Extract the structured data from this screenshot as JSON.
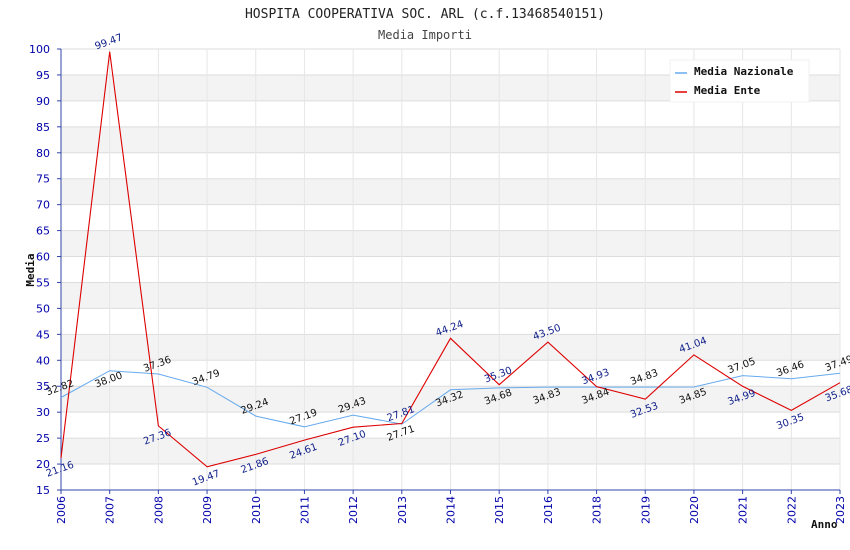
{
  "chart_data": {
    "type": "line",
    "title": "HOSPITA COOPERATIVA SOC. ARL (c.f.13468540151)",
    "subtitle": "Media Importi",
    "xlabel": "Anno",
    "ylabel": "Media",
    "ylim": [
      15,
      100
    ],
    "ytick_step": 5,
    "categories": [
      "2006",
      "2007",
      "2008",
      "2009",
      "2010",
      "2011",
      "2012",
      "2013",
      "2014",
      "2015",
      "2016",
      "2018",
      "2019",
      "2020",
      "2021",
      "2022",
      "2023"
    ],
    "series": [
      {
        "name": "Media Nazionale",
        "color": "#66aaee",
        "values": [
          32.82,
          38.0,
          37.36,
          34.79,
          29.24,
          27.19,
          29.43,
          27.71,
          34.32,
          34.68,
          34.83,
          34.84,
          34.83,
          34.85,
          37.05,
          36.46,
          37.49
        ],
        "labels": [
          "32.82",
          "38.00",
          "37.36",
          "34.79",
          "29.24",
          "27.19",
          "29.43",
          "27.71",
          "34.32",
          "34.68",
          "34.83",
          "34.84",
          "34.83",
          "34.85",
          "37.05",
          "36.46",
          "37.49"
        ]
      },
      {
        "name": "Media Ente",
        "color": "#dd0000",
        "values": [
          21.16,
          99.47,
          27.36,
          19.47,
          21.86,
          24.61,
          27.1,
          27.81,
          44.24,
          35.3,
          43.5,
          34.93,
          32.53,
          41.04,
          34.99,
          30.35,
          35.68
        ],
        "labels": [
          "21.16",
          "99.47",
          "27.36",
          "19.47",
          "21.86",
          "24.61",
          "27.10",
          "27.81",
          "44.24",
          "35.30",
          "43.50",
          "34.93",
          "32.53",
          "41.04",
          "34.99",
          "30.35",
          "35.68"
        ]
      }
    ],
    "legend": "top-right",
    "grid": true
  }
}
